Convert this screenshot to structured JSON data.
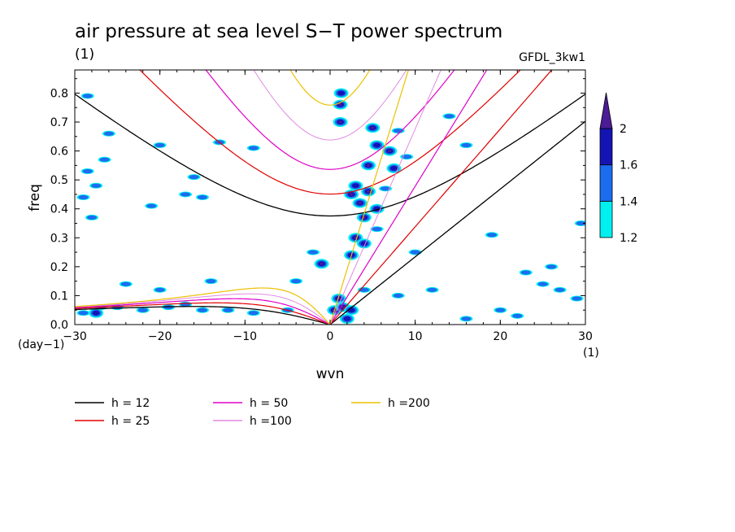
{
  "chart_data": {
    "type": "heatmap",
    "title": "air pressure at sea level S−T power spectrum",
    "subtitle_left": "(1)",
    "subtitle_right": "GFDL_3kw1",
    "xlabel": "wvn",
    "ylabel": "freq",
    "x_unit": "(1)",
    "y_unit": "(day−1)",
    "xlim": [
      -30,
      30
    ],
    "ylim": [
      0,
      0.88
    ],
    "x_ticks": [
      -30,
      -20,
      -10,
      0,
      10,
      20,
      30
    ],
    "x_tick_labels": [
      "−30",
      "−20",
      "−10",
      "0",
      "10",
      "20",
      "30"
    ],
    "y_ticks": [
      0.0,
      0.1,
      0.2,
      0.3,
      0.4,
      0.5,
      0.6,
      0.7,
      0.8
    ],
    "y_tick_labels": [
      "0.0",
      "0.1",
      "0.2",
      "0.3",
      "0.4",
      "0.5",
      "0.6",
      "0.7",
      "0.8"
    ],
    "colorbar": {
      "levels": [
        1.2,
        1.4,
        1.6,
        2
      ],
      "level_labels": [
        "1.2",
        "1.4",
        "1.6",
        "2"
      ],
      "colors": [
        "#00f0f0",
        "#1c6cf0",
        "#1414b4",
        "#4b1c96"
      ]
    },
    "dispersion_curves": [
      {
        "name": "h = 12",
        "h": 12,
        "color": "#000000",
        "width": 1.3
      },
      {
        "name": "h = 25",
        "h": 25,
        "color": "#e00000",
        "width": 1.2
      },
      {
        "name": "h = 50",
        "h": 50,
        "color": "#e000c8",
        "width": 1.2
      },
      {
        "name": "h =100",
        "h": 100,
        "color": "#e08ce0",
        "width": 1.0
      },
      {
        "name": "h =200",
        "h": 200,
        "color": "#ecc000",
        "width": 1.2
      }
    ],
    "power_regions": [
      {
        "k": 0.5,
        "f": 0.05,
        "level": 3
      },
      {
        "k": 1.5,
        "f": 0.06,
        "level": 3
      },
      {
        "k": 2.5,
        "f": 0.05,
        "level": 2
      },
      {
        "k": 1.0,
        "f": 0.09,
        "level": 3
      },
      {
        "k": 2.0,
        "f": 0.02,
        "level": 2
      },
      {
        "k": 1.2,
        "f": 0.76,
        "level": 3
      },
      {
        "k": 1.2,
        "f": 0.7,
        "level": 3
      },
      {
        "k": 1.3,
        "f": 0.8,
        "level": 2
      },
      {
        "k": 5.0,
        "f": 0.68,
        "level": 3
      },
      {
        "k": 5.5,
        "f": 0.62,
        "level": 2
      },
      {
        "k": 7.0,
        "f": 0.6,
        "level": 3
      },
      {
        "k": 4.5,
        "f": 0.55,
        "level": 3
      },
      {
        "k": 7.5,
        "f": 0.54,
        "level": 2
      },
      {
        "k": 3.0,
        "f": 0.48,
        "level": 2
      },
      {
        "k": 2.5,
        "f": 0.45,
        "level": 3
      },
      {
        "k": 4.5,
        "f": 0.46,
        "level": 3
      },
      {
        "k": 3.5,
        "f": 0.42,
        "level": 3
      },
      {
        "k": 5.5,
        "f": 0.4,
        "level": 2
      },
      {
        "k": 4.0,
        "f": 0.37,
        "level": 3
      },
      {
        "k": 3.0,
        "f": 0.3,
        "level": 3
      },
      {
        "k": 4.0,
        "f": 0.28,
        "level": 2
      },
      {
        "k": 2.5,
        "f": 0.24,
        "level": 2
      },
      {
        "k": 5.5,
        "f": 0.33,
        "level": 1
      },
      {
        "k": -1.0,
        "f": 0.21,
        "level": 3
      },
      {
        "k": -2.0,
        "f": 0.25,
        "level": 1
      },
      {
        "k": 6.5,
        "f": 0.47,
        "level": 1
      },
      {
        "k": 8.0,
        "f": 0.67,
        "level": 1
      },
      {
        "k": 9.0,
        "f": 0.58,
        "level": 1
      },
      {
        "k": -29.0,
        "f": 0.04,
        "level": 1
      },
      {
        "k": -27.0,
        "f": 0.06,
        "level": 1
      },
      {
        "k": -25.0,
        "f": 0.06,
        "level": 1
      },
      {
        "k": -22.0,
        "f": 0.05,
        "level": 1
      },
      {
        "k": -19.0,
        "f": 0.06,
        "level": 1
      },
      {
        "k": -15.0,
        "f": 0.05,
        "level": 1
      },
      {
        "k": -12.0,
        "f": 0.05,
        "level": 1
      },
      {
        "k": -27.5,
        "f": 0.04,
        "level": 2
      },
      {
        "k": -24.0,
        "f": 0.14,
        "level": 1
      },
      {
        "k": -20.0,
        "f": 0.12,
        "level": 1
      },
      {
        "k": -17.0,
        "f": 0.07,
        "level": 1
      },
      {
        "k": -9.0,
        "f": 0.04,
        "level": 1
      },
      {
        "k": -5.0,
        "f": 0.05,
        "level": 1
      },
      {
        "k": -28.5,
        "f": 0.53,
        "level": 1
      },
      {
        "k": -27.5,
        "f": 0.48,
        "level": 1
      },
      {
        "k": -29.0,
        "f": 0.44,
        "level": 1
      },
      {
        "k": -26.5,
        "f": 0.57,
        "level": 1
      },
      {
        "k": -28.0,
        "f": 0.37,
        "level": 1
      },
      {
        "k": -21.0,
        "f": 0.41,
        "level": 1
      },
      {
        "k": -17.0,
        "f": 0.45,
        "level": 1
      },
      {
        "k": -15.0,
        "f": 0.44,
        "level": 1
      },
      {
        "k": -28.5,
        "f": 0.79,
        "level": 1
      },
      {
        "k": -26.0,
        "f": 0.66,
        "level": 1
      },
      {
        "k": -20.0,
        "f": 0.62,
        "level": 1
      },
      {
        "k": -16.0,
        "f": 0.51,
        "level": 1
      },
      {
        "k": -13.0,
        "f": 0.63,
        "level": 1
      },
      {
        "k": -9.0,
        "f": 0.61,
        "level": 1
      },
      {
        "k": -4.0,
        "f": 0.15,
        "level": 1
      },
      {
        "k": -14.0,
        "f": 0.15,
        "level": 1
      },
      {
        "k": 26.0,
        "f": 0.2,
        "level": 1
      },
      {
        "k": 23.0,
        "f": 0.18,
        "level": 1
      },
      {
        "k": 25.0,
        "f": 0.14,
        "level": 1
      },
      {
        "k": 27.0,
        "f": 0.12,
        "level": 1
      },
      {
        "k": 29.0,
        "f": 0.09,
        "level": 1
      },
      {
        "k": 20.0,
        "f": 0.05,
        "level": 1
      },
      {
        "k": 16.0,
        "f": 0.02,
        "level": 1
      },
      {
        "k": 22.0,
        "f": 0.03,
        "level": 1
      },
      {
        "k": 29.5,
        "f": 0.35,
        "level": 1
      },
      {
        "k": 16.0,
        "f": 0.62,
        "level": 1
      },
      {
        "k": 19.0,
        "f": 0.31,
        "level": 1
      },
      {
        "k": 10.0,
        "f": 0.25,
        "level": 1
      },
      {
        "k": 12.0,
        "f": 0.12,
        "level": 1
      },
      {
        "k": 14.0,
        "f": 0.72,
        "level": 1
      },
      {
        "k": 8.0,
        "f": 0.1,
        "level": 1
      },
      {
        "k": 4.0,
        "f": 0.12,
        "level": 1
      }
    ]
  }
}
